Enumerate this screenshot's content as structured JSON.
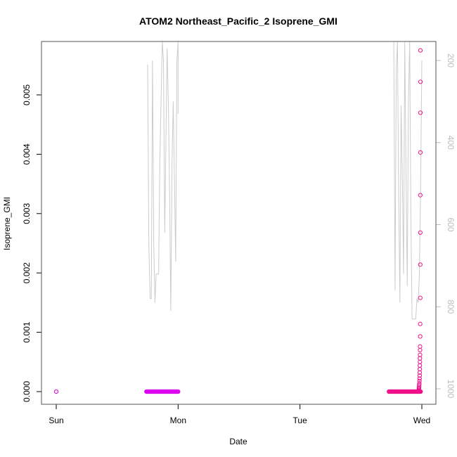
{
  "chart_data": {
    "type": "scatter",
    "title": "ATOM2 Northeast_Pacific_2 Isoprene_GMI",
    "xlabel": "Date",
    "ylabel": "Isoprene_GMI",
    "x_ticks": [
      {
        "label": "Sun",
        "day": 0
      },
      {
        "label": "Mon",
        "day": 1
      },
      {
        "label": "Tue",
        "day": 2
      },
      {
        "label": "Wed",
        "day": 3
      }
    ],
    "xlim": [
      0,
      3
    ],
    "ylim": [
      0,
      0.0059
    ],
    "y_ticks": [
      0.0,
      0.001,
      0.002,
      0.003,
      0.004,
      0.005
    ],
    "y_tick_labels": [
      "0.000",
      "0.001",
      "0.002",
      "0.003",
      "0.004",
      "0.005"
    ],
    "right_axis": {
      "ticks": [
        200,
        400,
        600,
        800,
        1000
      ],
      "lim": [
        1030,
        140
      ],
      "color": "#bdbdbd"
    },
    "grid": false,
    "legend": "none",
    "series": [
      {
        "kind": "points",
        "color": "#dd00ee",
        "groups": [
          {
            "x_start": 0.0,
            "x_end": 0.0,
            "count": 1,
            "y": 0.0
          },
          {
            "x_start": 0.74,
            "x_end": 1.0,
            "count": 80,
            "y": 0.0
          }
        ]
      },
      {
        "kind": "points",
        "color": "#ee1188",
        "groups": [
          {
            "x_start": 2.73,
            "x_end": 2.99,
            "count": 80,
            "y": 0.0
          }
        ],
        "tail": [
          [
            2.985,
            1e-05
          ],
          [
            2.986,
            2e-05
          ],
          [
            2.987,
            4e-05
          ],
          [
            2.988,
            6e-05
          ],
          [
            2.989,
            8e-05
          ],
          [
            2.99,
            0.00011
          ],
          [
            2.991,
            0.00014
          ],
          [
            2.992,
            0.00018
          ],
          [
            2.993,
            0.00022
          ],
          [
            2.994,
            0.00027
          ],
          [
            2.994,
            0.00032
          ],
          [
            2.995,
            0.00038
          ],
          [
            2.995,
            0.00044
          ],
          [
            2.996,
            0.0005
          ],
          [
            2.996,
            0.00056
          ],
          [
            2.997,
            0.00062
          ],
          [
            2.997,
            0.0007
          ],
          [
            2.997,
            0.00076
          ],
          [
            2.998,
            0.00093
          ],
          [
            2.998,
            0.00114
          ],
          [
            2.999,
            0.00158
          ],
          [
            2.999,
            0.00214
          ],
          [
            2.999,
            0.00268
          ],
          [
            2.999,
            0.00331
          ],
          [
            3.0,
            0.00403
          ],
          [
            3.0,
            0.0047
          ],
          [
            3.0,
            0.00522
          ],
          [
            3.0,
            0.00575
          ]
        ]
      },
      {
        "kind": "line",
        "axis": "right",
        "color": "#cccccc",
        "segments": [
          [
            [
              0.75,
              210
            ],
            [
              0.76,
              650
            ],
            [
              0.77,
              780
            ],
            [
              0.78,
              780
            ],
            [
              0.79,
              200
            ],
            [
              0.8,
              650
            ],
            [
              0.81,
              790
            ],
            [
              0.82,
              720
            ],
            [
              0.84,
              720
            ],
            [
              0.85,
              450
            ],
            [
              0.87,
              140
            ],
            [
              0.88,
              200
            ],
            [
              0.89,
              620
            ],
            [
              0.91,
              170
            ],
            [
              0.92,
              310
            ],
            [
              0.93,
              520
            ],
            [
              0.94,
              810
            ],
            [
              0.95,
              450
            ],
            [
              0.96,
              300
            ],
            [
              0.98,
              690
            ],
            [
              0.99,
              200
            ],
            [
              1.0,
              140
            ],
            [
              1.0,
              330
            ]
          ],
          [
            [
              2.77,
              140
            ],
            [
              2.78,
              760
            ],
            [
              2.79,
              220
            ],
            [
              2.8,
              140
            ],
            [
              2.81,
              530
            ],
            [
              2.82,
              790
            ],
            [
              2.83,
              310
            ],
            [
              2.84,
              490
            ],
            [
              2.85,
              720
            ],
            [
              2.86,
              140
            ],
            [
              2.87,
              480
            ],
            [
              2.88,
              750
            ],
            [
              2.89,
              300
            ],
            [
              2.9,
              140
            ],
            [
              2.91,
              580
            ],
            [
              2.92,
              830
            ],
            [
              2.93,
              830
            ],
            [
              2.95,
              830
            ],
            [
              2.96,
              780
            ],
            [
              2.97,
              790
            ],
            [
              2.98,
              720
            ],
            [
              2.99,
              500
            ],
            [
              3.0,
              200
            ]
          ]
        ]
      }
    ]
  }
}
